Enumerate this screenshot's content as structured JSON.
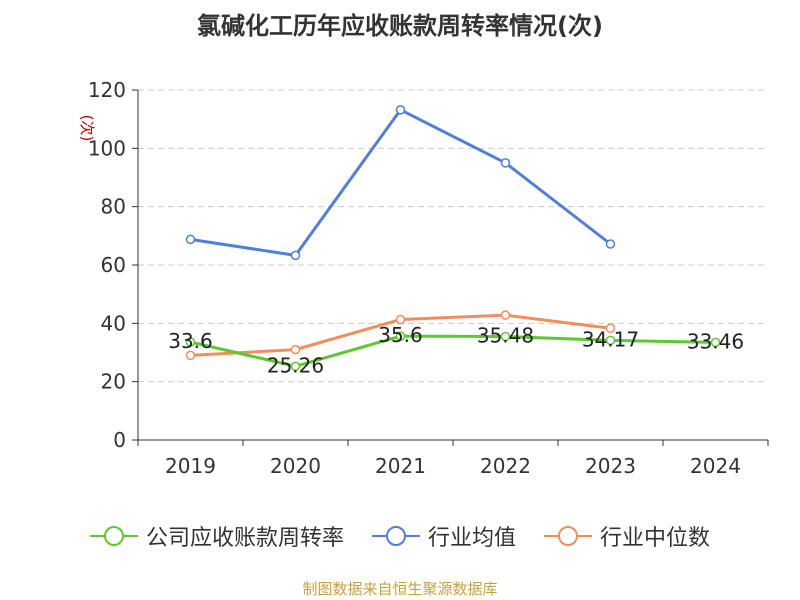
{
  "chart_data": {
    "type": "line",
    "title": "氯碱化工历年应收账款周转率情况(次)",
    "ylabel": "(次)",
    "categories": [
      "2019",
      "2020",
      "2021",
      "2022",
      "2023",
      "2024"
    ],
    "ylim": [
      0,
      120
    ],
    "yticks": [
      0,
      20,
      40,
      60,
      80,
      100,
      120
    ],
    "grid": true,
    "legend_position": "bottom",
    "series": [
      {
        "name": "公司应收账款周转率",
        "color": "#5ec82d",
        "values": [
          33.6,
          25.26,
          35.6,
          35.48,
          34.17,
          33.46
        ],
        "labels": [
          "33.6",
          "25.26",
          "35.6",
          "35.48",
          "34.17",
          "33.46"
        ]
      },
      {
        "name": "行业均值",
        "color": "#4f7fdb",
        "values": [
          68.8,
          63.3,
          113.2,
          95.0,
          67.2,
          null
        ]
      },
      {
        "name": "行业中位数",
        "color": "#f58c5a",
        "values": [
          29.0,
          31.0,
          41.3,
          42.8,
          38.3,
          null
        ]
      }
    ]
  },
  "footer": {
    "source": "制图数据来自恒生聚源数据库",
    "color": "#c8a040"
  }
}
